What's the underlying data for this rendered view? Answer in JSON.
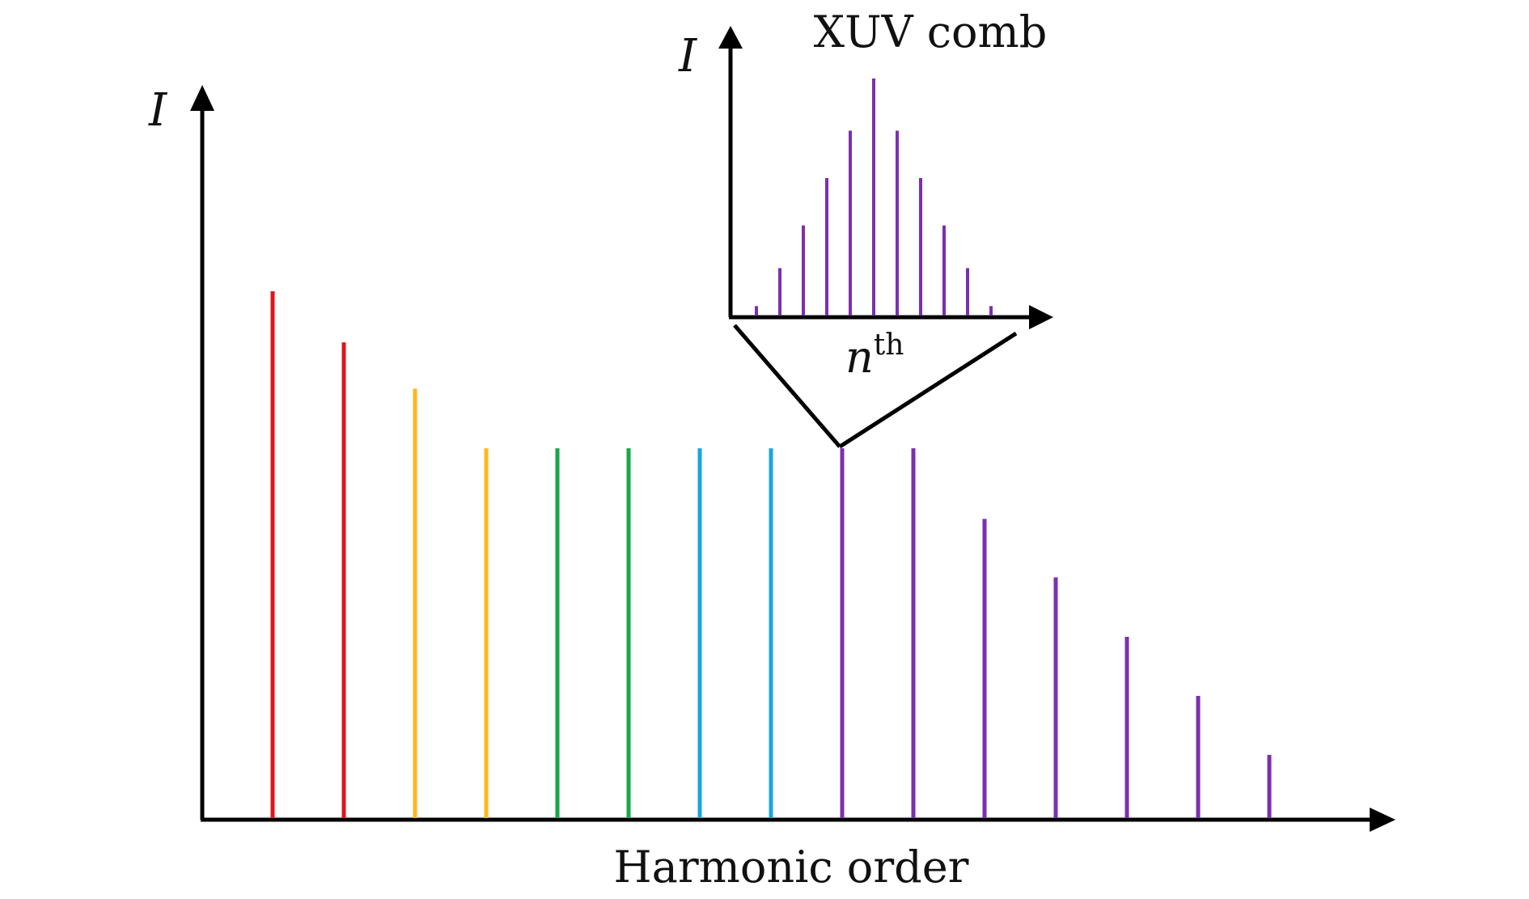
{
  "main_plot": {
    "y_axis_label": "I",
    "x_axis_label": "Harmonic order"
  },
  "inset": {
    "title": "XUV comb",
    "y_axis_label": "I",
    "x_label_base": "n",
    "x_label_sup": "th"
  },
  "colors": {
    "axis": "#000000",
    "red": "#e0141e",
    "yellow": "#ffb81c",
    "green": "#1aa64a",
    "cyan": "#18a6e0",
    "purple": "#7d2fae"
  },
  "chart_data": [
    {
      "type": "bar",
      "name": "main",
      "ylim": [
        0,
        1
      ],
      "values": [
        1.0,
        0.903,
        0.815,
        0.702,
        0.702,
        0.702,
        0.702,
        0.702,
        0.702,
        0.702,
        0.568,
        0.457,
        0.344,
        0.232,
        0.12
      ],
      "colors": [
        "red",
        "red",
        "yellow",
        "yellow",
        "green",
        "green",
        "cyan",
        "cyan",
        "purple",
        "purple",
        "purple",
        "purple",
        "purple",
        "purple",
        "purple"
      ]
    },
    {
      "type": "bar",
      "name": "inset",
      "ylim": [
        0,
        1
      ],
      "values": [
        0.04,
        0.2,
        0.38,
        0.58,
        0.78,
        1.0,
        0.78,
        0.58,
        0.38,
        0.2,
        0.04
      ],
      "color": "purple"
    }
  ]
}
